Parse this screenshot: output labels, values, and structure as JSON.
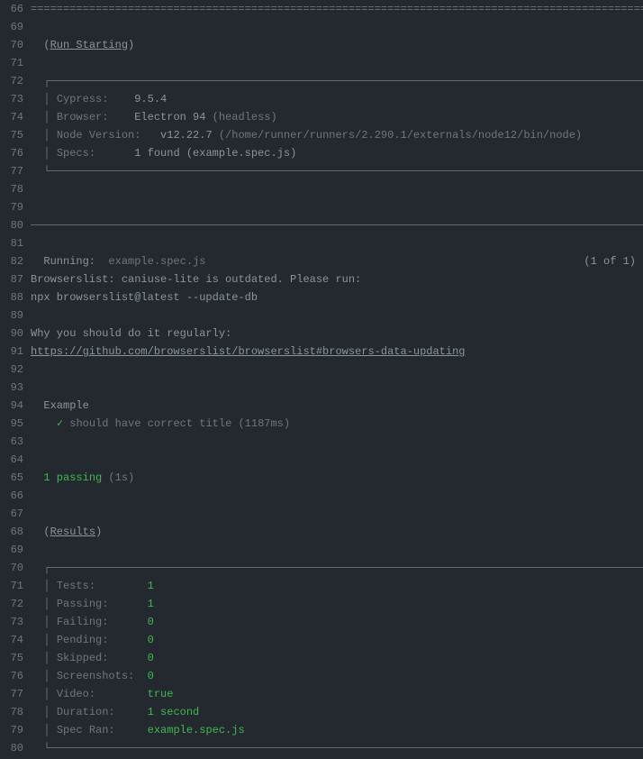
{
  "colors": {
    "background": "#24292f",
    "text_default": "#8b949e",
    "text_dim": "#6e7681",
    "text_green": "#3fb950",
    "gutter": "#6e7681"
  },
  "lines": [
    {
      "n": "66",
      "segs": [
        {
          "t": "====================================================================================================",
          "c": "dim"
        }
      ]
    },
    {
      "n": "69",
      "segs": []
    },
    {
      "n": "70",
      "segs": [
        {
          "t": "  (",
          "c": ""
        },
        {
          "t": "Run Starting",
          "c": "hlink"
        },
        {
          "t": ")",
          "c": ""
        }
      ]
    },
    {
      "n": "71",
      "segs": []
    },
    {
      "n": "72",
      "segs": [
        {
          "t": "  ┌────────────────────────────────────────────────────────────────────────────────────────────────┐",
          "c": "dim"
        }
      ]
    },
    {
      "n": "73",
      "segs": [
        {
          "t": "  │ ",
          "c": "dim"
        },
        {
          "t": "Cypress:    ",
          "c": "dim"
        },
        {
          "t": "9.5.4",
          "c": ""
        },
        {
          "t": "                                                                              │",
          "c": "dim"
        }
      ]
    },
    {
      "n": "74",
      "segs": [
        {
          "t": "  │ ",
          "c": "dim"
        },
        {
          "t": "Browser:    ",
          "c": "dim"
        },
        {
          "t": "Electron 94 ",
          "c": ""
        },
        {
          "t": "(headless)",
          "c": "dim"
        },
        {
          "t": "                                                             │",
          "c": "dim"
        }
      ]
    },
    {
      "n": "75",
      "segs": [
        {
          "t": "  │ ",
          "c": "dim"
        },
        {
          "t": "Node Version:",
          "c": "dim"
        },
        {
          "t": "   v12.22.7 ",
          "c": ""
        },
        {
          "t": "(/home/runner/runners/2.290.1/externals/node12/bin/node)",
          "c": "dim"
        },
        {
          "t": "               │",
          "c": "dim"
        }
      ]
    },
    {
      "n": "76",
      "segs": [
        {
          "t": "  │ ",
          "c": "dim"
        },
        {
          "t": "Specs:      ",
          "c": "dim"
        },
        {
          "t": "1 found (example.spec.js)",
          "c": ""
        },
        {
          "t": "                                                          │",
          "c": "dim"
        }
      ]
    },
    {
      "n": "77",
      "segs": [
        {
          "t": "  └────────────────────────────────────────────────────────────────────────────────────────────────┘",
          "c": "dim"
        }
      ]
    },
    {
      "n": "78",
      "segs": []
    },
    {
      "n": "79",
      "segs": []
    },
    {
      "n": "80",
      "segs": [
        {
          "t": "────────────────────────────────────────────────────────────────────────────────────────────────────",
          "c": "dim"
        }
      ]
    },
    {
      "n": "81",
      "segs": []
    },
    {
      "n": "82",
      "segs": [
        {
          "t": "  Running:",
          "c": ""
        },
        {
          "t": "  example.spec.js",
          "c": "dim"
        }
      ],
      "right": "(1 of 1)"
    },
    {
      "n": "87",
      "segs": [
        {
          "t": "Browserslist: caniuse-lite is outdated. Please run:",
          "c": ""
        }
      ]
    },
    {
      "n": "88",
      "segs": [
        {
          "t": "npx browserslist@latest --update-db",
          "c": ""
        }
      ]
    },
    {
      "n": "89",
      "segs": []
    },
    {
      "n": "90",
      "segs": [
        {
          "t": "Why you should do it regularly:",
          "c": ""
        }
      ]
    },
    {
      "n": "91",
      "segs": [
        {
          "t": "https://github.com/browserslist/browserslist#browsers-data-updating",
          "c": "hlink"
        }
      ]
    },
    {
      "n": "92",
      "segs": []
    },
    {
      "n": "93",
      "segs": []
    },
    {
      "n": "94",
      "segs": [
        {
          "t": "  Example",
          "c": ""
        }
      ]
    },
    {
      "n": "95",
      "segs": [
        {
          "t": "    ",
          "c": ""
        },
        {
          "t": "✓",
          "c": "green"
        },
        {
          "t": " should have correct title (1187ms)",
          "c": "dim"
        }
      ]
    },
    {
      "n": "63",
      "segs": []
    },
    {
      "n": "64",
      "segs": []
    },
    {
      "n": "65",
      "segs": [
        {
          "t": "  ",
          "c": ""
        },
        {
          "t": "1 passing",
          "c": "green"
        },
        {
          "t": " (1s)",
          "c": "dim"
        }
      ]
    },
    {
      "n": "66",
      "segs": []
    },
    {
      "n": "67",
      "segs": []
    },
    {
      "n": "68",
      "segs": [
        {
          "t": "  (",
          "c": ""
        },
        {
          "t": "Results",
          "c": "hlink"
        },
        {
          "t": ")",
          "c": ""
        }
      ]
    },
    {
      "n": "69",
      "segs": []
    },
    {
      "n": "70",
      "segs": [
        {
          "t": "  ┌────────────────────────────────────────────────────────────────────────────────────────────────┐",
          "c": "dim"
        }
      ]
    },
    {
      "n": "71",
      "segs": [
        {
          "t": "  │ ",
          "c": "dim"
        },
        {
          "t": "Tests:        ",
          "c": "dim"
        },
        {
          "t": "1",
          "c": "green"
        },
        {
          "t": "                                                                                │",
          "c": "dim"
        }
      ]
    },
    {
      "n": "72",
      "segs": [
        {
          "t": "  │ ",
          "c": "dim"
        },
        {
          "t": "Passing:      ",
          "c": "dim"
        },
        {
          "t": "1",
          "c": "green"
        },
        {
          "t": "                                                                                │",
          "c": "dim"
        }
      ]
    },
    {
      "n": "73",
      "segs": [
        {
          "t": "  │ ",
          "c": "dim"
        },
        {
          "t": "Failing:      ",
          "c": "dim"
        },
        {
          "t": "0",
          "c": "green"
        },
        {
          "t": "                                                                                │",
          "c": "dim"
        }
      ]
    },
    {
      "n": "74",
      "segs": [
        {
          "t": "  │ ",
          "c": "dim"
        },
        {
          "t": "Pending:      ",
          "c": "dim"
        },
        {
          "t": "0",
          "c": "green"
        },
        {
          "t": "                                                                                │",
          "c": "dim"
        }
      ]
    },
    {
      "n": "75",
      "segs": [
        {
          "t": "  │ ",
          "c": "dim"
        },
        {
          "t": "Skipped:      ",
          "c": "dim"
        },
        {
          "t": "0",
          "c": "green"
        },
        {
          "t": "                                                                                │",
          "c": "dim"
        }
      ]
    },
    {
      "n": "76",
      "segs": [
        {
          "t": "  │ ",
          "c": "dim"
        },
        {
          "t": "Screenshots:  ",
          "c": "dim"
        },
        {
          "t": "0",
          "c": "green"
        },
        {
          "t": "                                                                                │",
          "c": "dim"
        }
      ]
    },
    {
      "n": "77",
      "segs": [
        {
          "t": "  │ ",
          "c": "dim"
        },
        {
          "t": "Video:        ",
          "c": "dim"
        },
        {
          "t": "true",
          "c": "green"
        },
        {
          "t": "                                                                             │",
          "c": "dim"
        }
      ]
    },
    {
      "n": "78",
      "segs": [
        {
          "t": "  │ ",
          "c": "dim"
        },
        {
          "t": "Duration:     ",
          "c": "dim"
        },
        {
          "t": "1 second",
          "c": "green"
        },
        {
          "t": "                                                                         │",
          "c": "dim"
        }
      ]
    },
    {
      "n": "79",
      "segs": [
        {
          "t": "  │ ",
          "c": "dim"
        },
        {
          "t": "Spec Ran:     ",
          "c": "dim"
        },
        {
          "t": "example.spec.js",
          "c": "green"
        },
        {
          "t": "                                                                  │",
          "c": "dim"
        }
      ]
    },
    {
      "n": "80",
      "segs": [
        {
          "t": "  └────────────────────────────────────────────────────────────────────────────────────────────────┘",
          "c": "dim"
        }
      ]
    }
  ]
}
